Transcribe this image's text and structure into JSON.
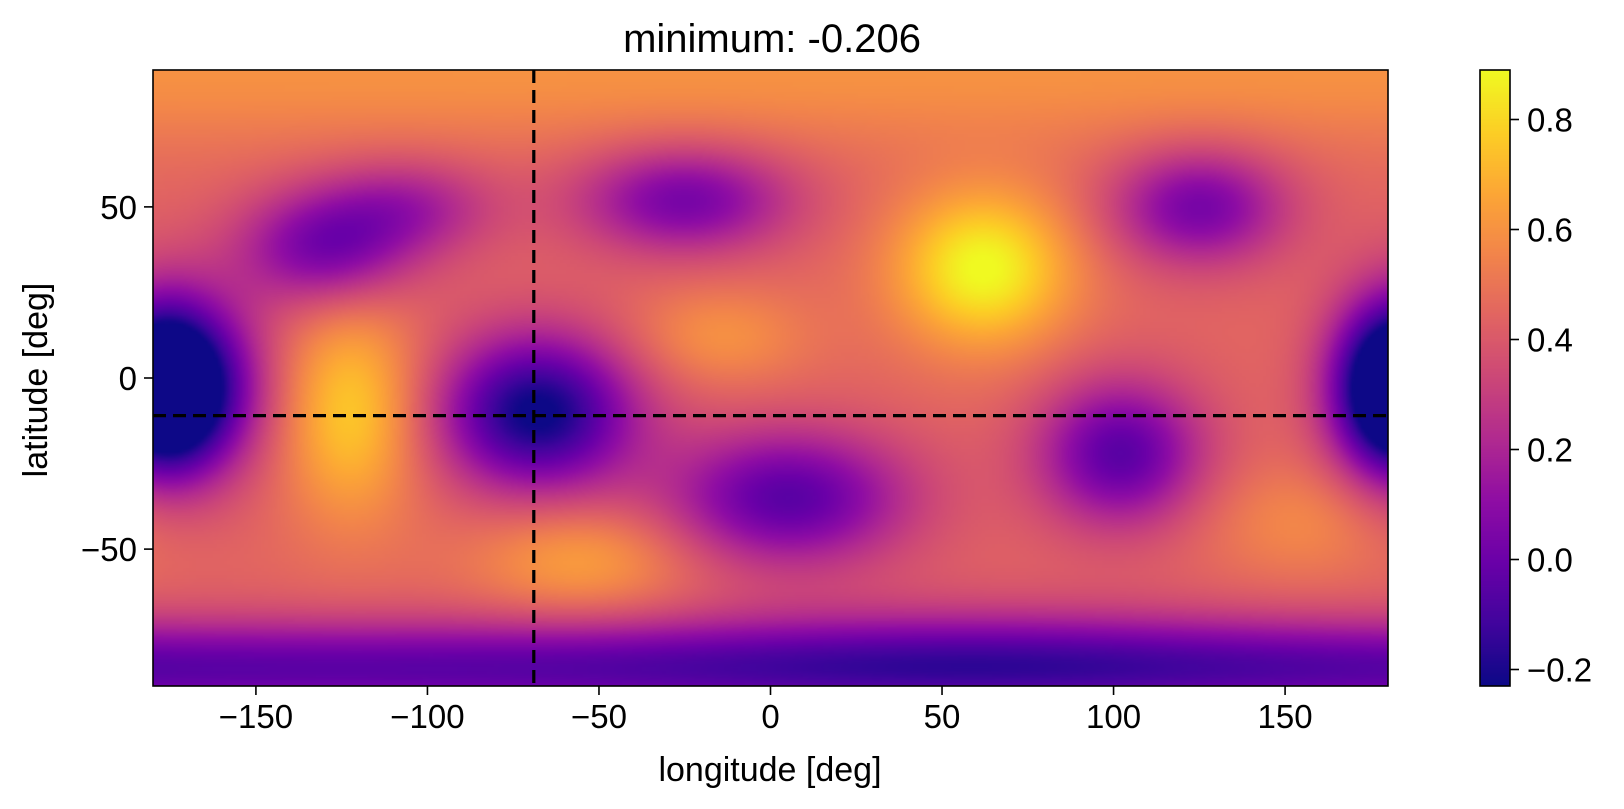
{
  "chart_data": {
    "type": "heatmap",
    "title": "minimum: -0.206",
    "xlabel": "longitude [deg]",
    "ylabel": "latitude [deg]",
    "xlim": [
      -180,
      180
    ],
    "ylim": [
      -90,
      90
    ],
    "x_ticks": [
      {
        "value": -150,
        "label": "−150"
      },
      {
        "value": -100,
        "label": "−100"
      },
      {
        "value": -50,
        "label": "−50"
      },
      {
        "value": 0,
        "label": "0"
      },
      {
        "value": 50,
        "label": "50"
      },
      {
        "value": 100,
        "label": "100"
      },
      {
        "value": 150,
        "label": "150"
      }
    ],
    "y_ticks": [
      {
        "value": 50,
        "label": "50"
      },
      {
        "value": 0,
        "label": "0"
      },
      {
        "value": -50,
        "label": "−50"
      }
    ],
    "colormap": "plasma",
    "colorbar": {
      "vmin": -0.23,
      "vmax": 0.89,
      "ticks": [
        {
          "value": 0.8,
          "label": "0.8"
        },
        {
          "value": 0.6,
          "label": "0.6"
        },
        {
          "value": 0.4,
          "label": "0.4"
        },
        {
          "value": 0.2,
          "label": "0.2"
        },
        {
          "value": 0.0,
          "label": "0.0"
        },
        {
          "value": -0.2,
          "label": "−0.2"
        }
      ]
    },
    "minimum_marker": {
      "lon": -69,
      "lat": -11,
      "style": "dashed",
      "color": "#000000"
    },
    "field": {
      "baseline": 0.45,
      "features": [
        {
          "lon": -170,
          "lat": -3,
          "amp": -0.68,
          "slon": 15,
          "slat": 18
        },
        {
          "lon": 180,
          "lat": -3,
          "amp": -0.6,
          "slon": 12,
          "slat": 18
        },
        {
          "lon": -68,
          "lat": -10,
          "amp": -0.7,
          "slon": 20,
          "slat": 16
        },
        {
          "lon": -122,
          "lat": -10,
          "amp": 0.32,
          "slon": 14,
          "slat": 22
        },
        {
          "lon": -130,
          "lat": 38,
          "amp": -0.42,
          "slon": 18,
          "slat": 12
        },
        {
          "lon": -105,
          "lat": 50,
          "amp": -0.25,
          "slon": 18,
          "slat": 10
        },
        {
          "lon": -25,
          "lat": 52,
          "amp": -0.42,
          "slon": 22,
          "slat": 11
        },
        {
          "lon": 62,
          "lat": 32,
          "amp": 0.45,
          "slon": 18,
          "slat": 16
        },
        {
          "lon": -15,
          "lat": 12,
          "amp": 0.15,
          "slon": 18,
          "slat": 10
        },
        {
          "lon": 125,
          "lat": 50,
          "amp": -0.42,
          "slon": 18,
          "slat": 12
        },
        {
          "lon": 102,
          "lat": -22,
          "amp": -0.5,
          "slon": 17,
          "slat": 15
        },
        {
          "lon": 5,
          "lat": -35,
          "amp": -0.5,
          "slon": 25,
          "slat": 14
        },
        {
          "lon": -55,
          "lat": -53,
          "amp": 0.2,
          "slon": 22,
          "slat": 11
        },
        {
          "lon": 155,
          "lat": -42,
          "amp": 0.12,
          "slon": 20,
          "slat": 12
        },
        {
          "lon": 0,
          "lat": -85,
          "amp": -0.5,
          "slon": 1000,
          "slat": 10
        },
        {
          "lon": 60,
          "lat": -80,
          "amp": -0.12,
          "slon": 60,
          "slat": 12
        },
        {
          "lon": 0,
          "lat": 90,
          "amp": 0.15,
          "slon": 1000,
          "slat": 15
        }
      ]
    }
  }
}
